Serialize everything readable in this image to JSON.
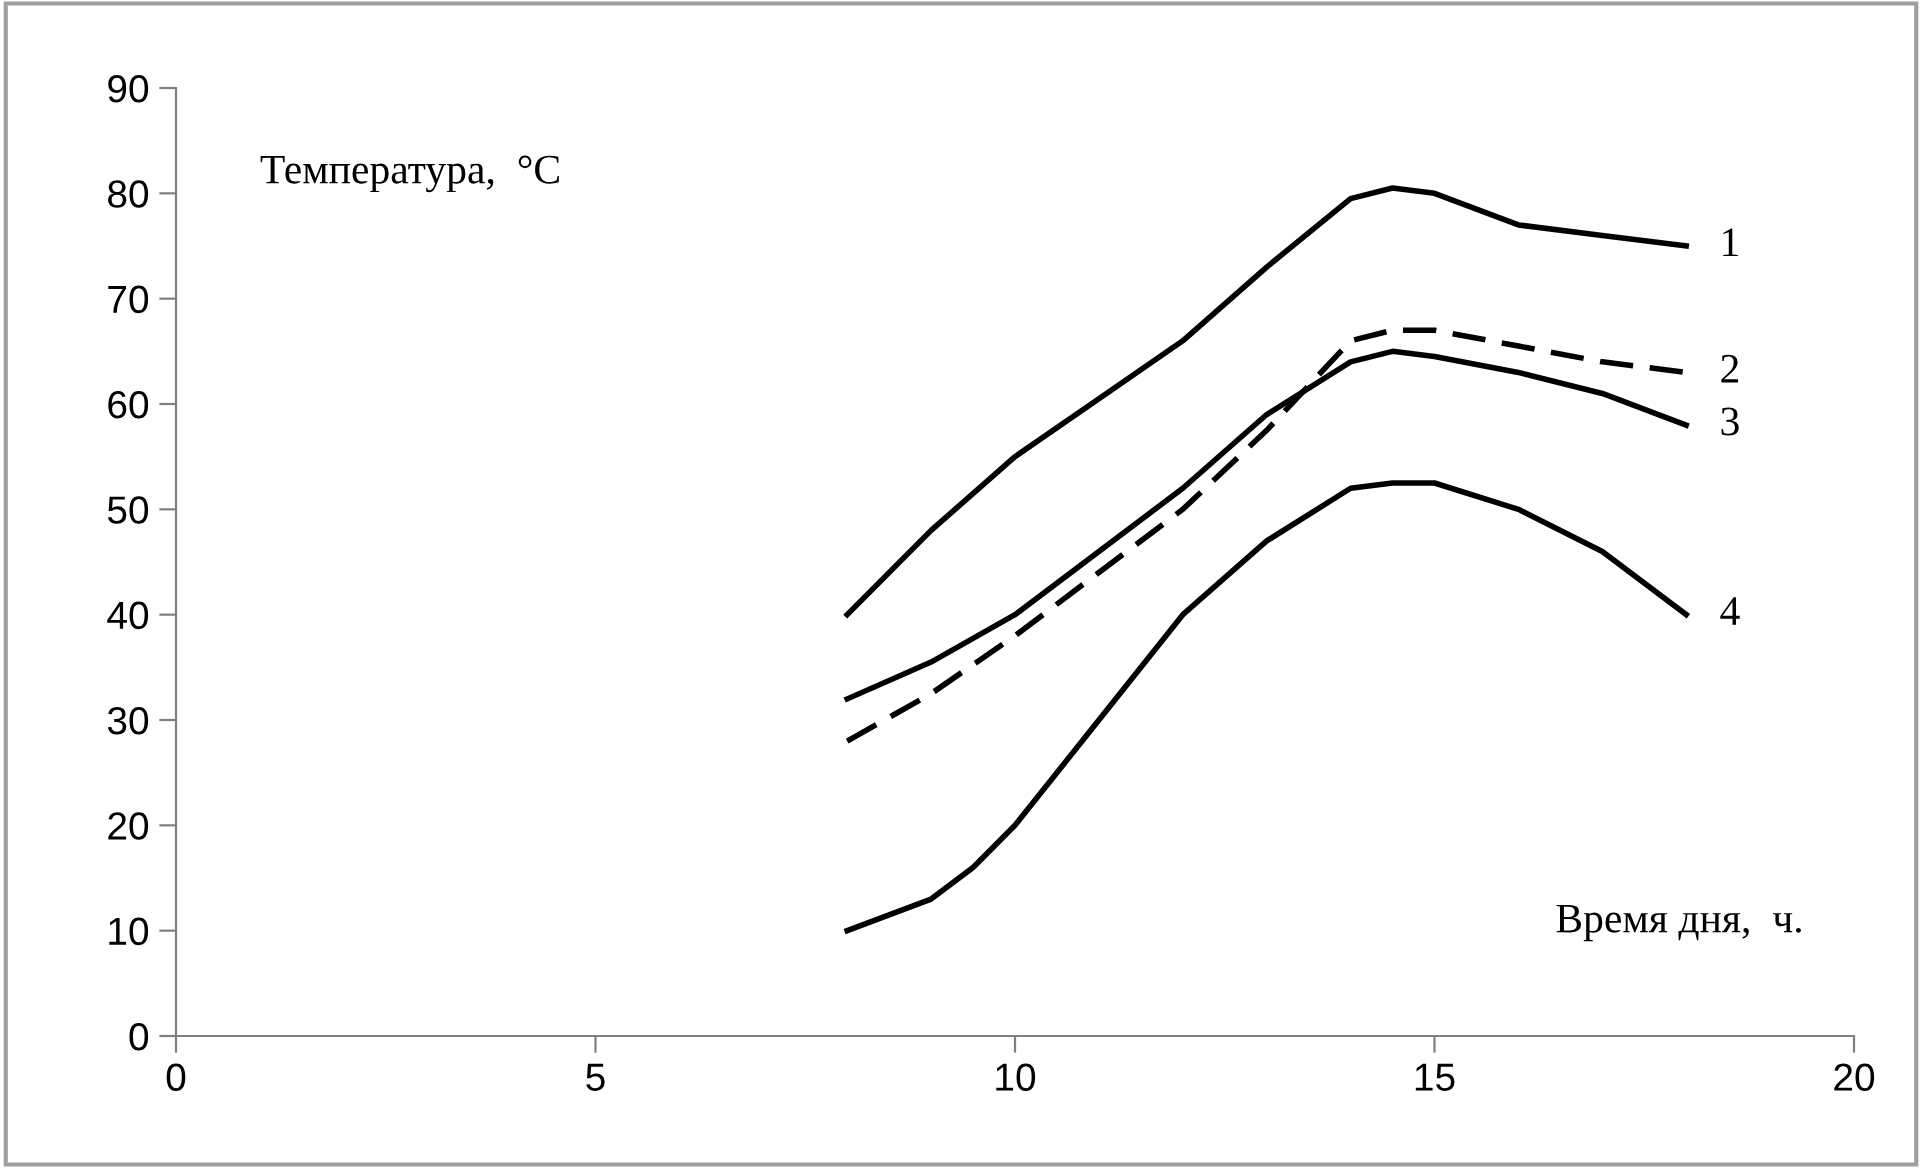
{
  "chart_data": {
    "type": "line",
    "xlabel": "Время дня,  ч.",
    "ylabel": "Температура,  °C",
    "xlim": [
      0,
      20
    ],
    "xticks": [
      0,
      5,
      10,
      15,
      20
    ],
    "ylim": [
      0,
      90
    ],
    "yticks": [
      0,
      10,
      20,
      30,
      40,
      50,
      60,
      70,
      80,
      90
    ],
    "grid": false,
    "legend": false,
    "marker": "none",
    "series": [
      {
        "name": "1",
        "color": "#000000",
        "line_style": "solid",
        "x": [
          8,
          9,
          10,
          11,
          12,
          13,
          14,
          14.5,
          15,
          16,
          17,
          18
        ],
        "values": [
          40,
          48,
          55,
          60.5,
          66,
          73,
          79.5,
          80.5,
          80,
          77,
          76,
          75
        ]
      },
      {
        "name": "2",
        "color": "#000000",
        "line_style": "dashed",
        "x": [
          8,
          9,
          10,
          11,
          12,
          13,
          14,
          14.5,
          15,
          16,
          17,
          18
        ],
        "values": [
          28,
          32.5,
          38,
          44,
          50,
          57.5,
          66,
          67,
          67,
          65.5,
          64,
          63
        ]
      },
      {
        "name": "3",
        "color": "#000000",
        "line_style": "solid",
        "x": [
          8,
          9,
          10,
          11,
          12,
          13,
          14,
          14.5,
          15,
          16,
          17,
          18
        ],
        "values": [
          32,
          35.5,
          40,
          46,
          52,
          59,
          64,
          65,
          64.5,
          63,
          61,
          58
        ]
      },
      {
        "name": "4",
        "color": "#000000",
        "line_style": "solid",
        "x": [
          8,
          9,
          9.5,
          10,
          11,
          12,
          13,
          14,
          14.5,
          15,
          16,
          17,
          18
        ],
        "values": [
          10,
          13,
          16,
          20,
          30,
          40,
          47,
          52,
          52.5,
          52.5,
          50,
          46,
          40
        ]
      }
    ]
  }
}
